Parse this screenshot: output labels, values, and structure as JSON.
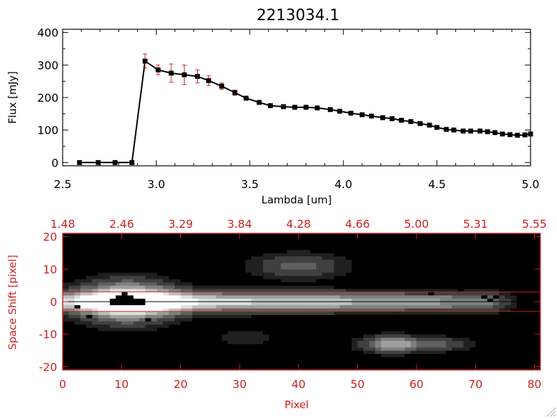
{
  "chart_data": [
    {
      "type": "line",
      "title": "2213034.1",
      "xlabel": "Lambda [um]",
      "ylabel": "Flux [mJy]",
      "xlim": [
        2.5,
        5.0
      ],
      "ylim": [
        -10,
        410
      ],
      "x_ticks": [
        "2.5",
        "3.0",
        "3.5",
        "4.0",
        "4.5",
        "5.0"
      ],
      "y_ticks": [
        "0",
        "100",
        "200",
        "300",
        "400"
      ],
      "line_color": "#000000",
      "marker_color": "#000000",
      "errorbar_color": "#cc2222",
      "series": [
        {
          "x": [
            2.59,
            2.69,
            2.78,
            2.87,
            2.94,
            3.01,
            3.08,
            3.15,
            3.22,
            3.28,
            3.35,
            3.42,
            3.48,
            3.55,
            3.61,
            3.68,
            3.74,
            3.8,
            3.86,
            3.93,
            3.98,
            4.04,
            4.1,
            4.15,
            4.21,
            4.26,
            4.31,
            4.36,
            4.41,
            4.46,
            4.5,
            4.55,
            4.59,
            4.64,
            4.68,
            4.73,
            4.77,
            4.81,
            4.85,
            4.89,
            4.93,
            4.97,
            5.0
          ],
          "y": [
            0,
            0,
            0,
            0,
            312,
            285,
            275,
            270,
            265,
            252,
            235,
            215,
            198,
            185,
            175,
            172,
            170,
            170,
            168,
            163,
            158,
            152,
            147,
            143,
            138,
            135,
            130,
            126,
            120,
            115,
            108,
            102,
            100,
            97,
            97,
            97,
            95,
            92,
            88,
            86,
            84,
            85,
            88
          ],
          "err": [
            0,
            0,
            0,
            0,
            22,
            15,
            28,
            30,
            20,
            15,
            10,
            8,
            6,
            5,
            4,
            4,
            4,
            4,
            4,
            4,
            4,
            4,
            4,
            4,
            4,
            4,
            4,
            4,
            4,
            4,
            4,
            4,
            4,
            4,
            4,
            4,
            4,
            4,
            4,
            4,
            4,
            4,
            4
          ]
        }
      ]
    },
    {
      "type": "heatmap",
      "xlabel": "Pixel",
      "ylabel": "Space Shift [pixel]",
      "xlim": [
        0,
        81
      ],
      "ylim": [
        -21,
        21
      ],
      "x_ticks": [
        "0",
        "10",
        "20",
        "30",
        "40",
        "50",
        "60",
        "70",
        "80"
      ],
      "y_ticks": [
        "-20",
        "-10",
        "0",
        "10",
        "20"
      ],
      "top_ticks": [
        "1.48",
        "2.46",
        "3.29",
        "3.84",
        "4.28",
        "4.66",
        "5.00",
        "5.31",
        "5.55"
      ],
      "extraction_lines": [
        3,
        -3
      ],
      "axis_color": "#cc2222",
      "colormap": "grayscale",
      "components": [
        {
          "kind": "trace",
          "x_start": 0,
          "x_end": 72,
          "center": 0,
          "half_width": 3.0,
          "peak": 0.85
        },
        {
          "kind": "blob",
          "x": 11,
          "y": 0,
          "sx": 8,
          "sy": 6,
          "amp": 1.0
        },
        {
          "kind": "blob",
          "x": 40,
          "y": 11,
          "sx": 8,
          "sy": 4,
          "amp": 0.35
        },
        {
          "kind": "blob",
          "x": 56,
          "y": -13,
          "sx": 5,
          "sy": 2.5,
          "amp": 0.7
        },
        {
          "kind": "blob",
          "x": 65,
          "y": -13,
          "sx": 5,
          "sy": 2.2,
          "amp": 0.3
        },
        {
          "kind": "blob",
          "x": 31,
          "y": -11,
          "sx": 5,
          "sy": 3,
          "amp": 0.18
        }
      ],
      "saturated": [
        {
          "x": 8,
          "y": -1
        },
        {
          "x": 8,
          "y": 0
        },
        {
          "x": 9,
          "y": -1
        },
        {
          "x": 9,
          "y": 0
        },
        {
          "x": 9,
          "y": 1
        },
        {
          "x": 10,
          "y": -1
        },
        {
          "x": 10,
          "y": 0
        },
        {
          "x": 10,
          "y": 1
        },
        {
          "x": 10,
          "y": 2
        },
        {
          "x": 11,
          "y": -1
        },
        {
          "x": 11,
          "y": 0
        },
        {
          "x": 11,
          "y": 1
        },
        {
          "x": 12,
          "y": -1
        },
        {
          "x": 12,
          "y": 0
        },
        {
          "x": 13,
          "y": -1
        },
        {
          "x": 13,
          "y": 0
        },
        {
          "x": 2,
          "y": -2
        },
        {
          "x": 4,
          "y": -5
        },
        {
          "x": 14,
          "y": -6
        },
        {
          "x": 52,
          "y": 4
        },
        {
          "x": 62,
          "y": 2
        },
        {
          "x": 65,
          "y": 4
        },
        {
          "x": 67,
          "y": 3
        },
        {
          "x": 71,
          "y": 1
        },
        {
          "x": 72,
          "y": 0
        },
        {
          "x": 73,
          "y": 1
        },
        {
          "x": 76,
          "y": 2
        },
        {
          "x": 77,
          "y": 1
        },
        {
          "x": 79,
          "y": 1
        }
      ]
    }
  ]
}
